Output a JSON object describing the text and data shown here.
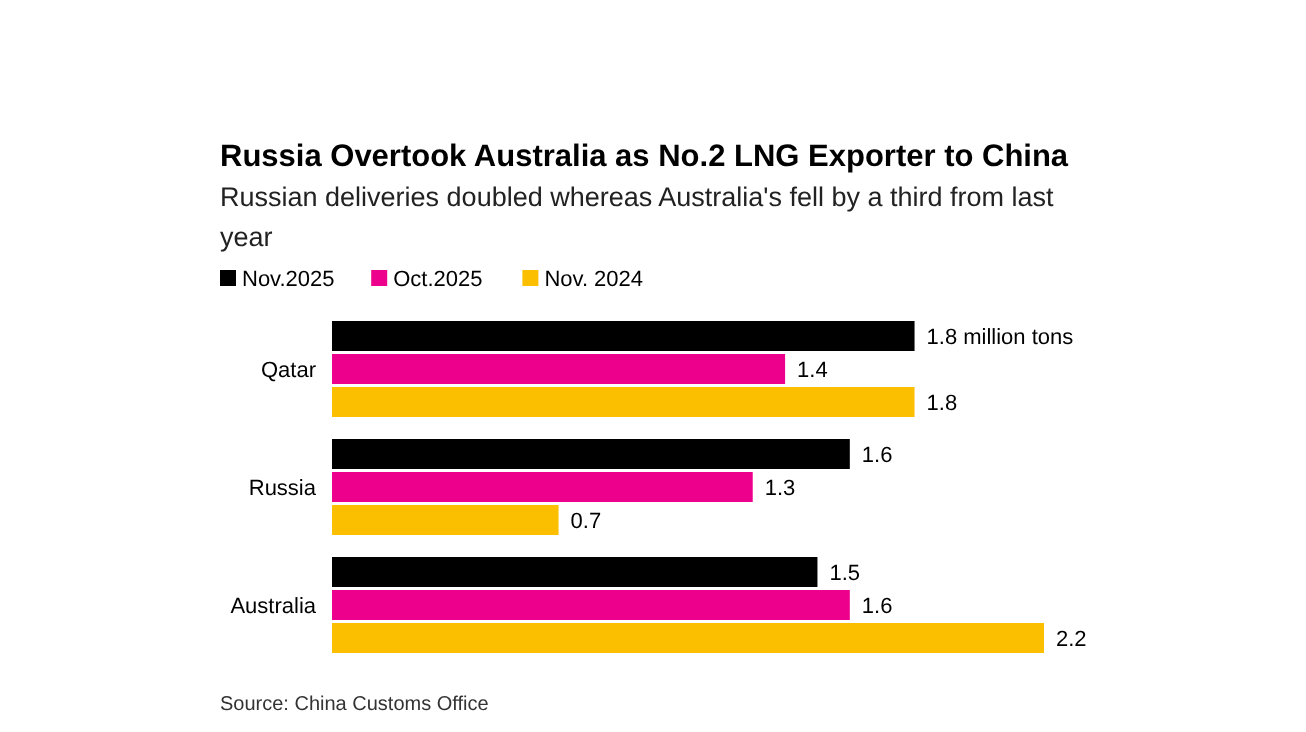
{
  "chart_data": {
    "type": "bar",
    "orientation": "horizontal",
    "title": "Russia Overtook Australia as No.2 LNG Exporter to China",
    "subtitle": "Russian deliveries doubled whereas Australia's fell by a third from last year",
    "categories": [
      "Qatar",
      "Russia",
      "Australia"
    ],
    "series": [
      {
        "name": "Nov.2025",
        "color": "#000000",
        "values": [
          1.8,
          1.6,
          1.5
        ],
        "value_labels": [
          "1.8 million tons",
          "1.6",
          "1.5"
        ]
      },
      {
        "name": "Oct.2025",
        "color": "#ec008c",
        "values": [
          1.4,
          1.3,
          1.6
        ],
        "value_labels": [
          "1.4",
          "1.3",
          "1.6"
        ]
      },
      {
        "name": "Nov. 2024",
        "color": "#fbbf00",
        "values": [
          1.8,
          0.7,
          2.2
        ],
        "value_labels": [
          "1.8",
          "0.7",
          "2.2"
        ]
      }
    ],
    "legend": "top left",
    "annotations": [
      "Source: China Customs Office"
    ]
  }
}
